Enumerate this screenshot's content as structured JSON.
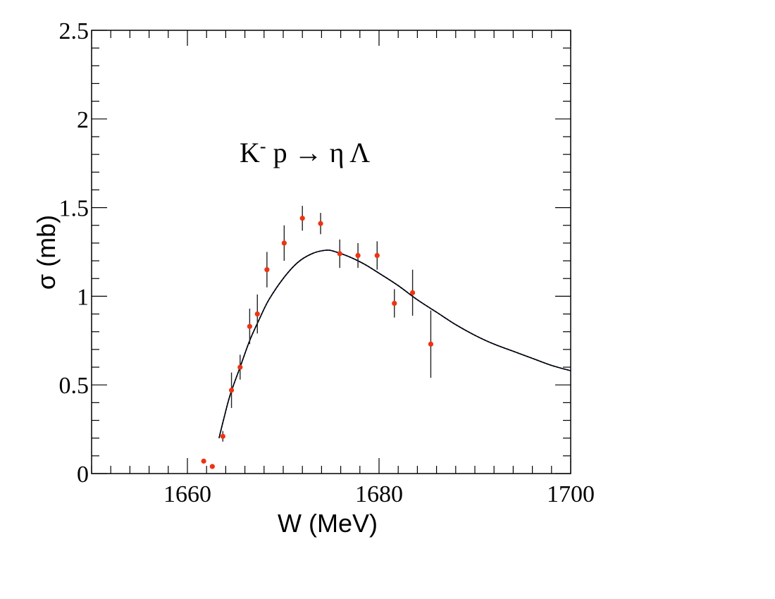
{
  "chart_data": {
    "type": "scatter",
    "xlabel": "W (MeV)",
    "ylabel": "σ (mb)",
    "annotation": {
      "main": "K",
      "superscript": "-",
      "rest": " p → η Λ"
    },
    "xlim": [
      1650,
      1700
    ],
    "ylim": [
      0,
      2.5
    ],
    "x_ticks": [
      1660,
      1680,
      1700
    ],
    "y_ticks": [
      0,
      0.5,
      1,
      1.5,
      2,
      2.5
    ],
    "x_tick_labels": [
      "1660",
      "1680",
      "1700"
    ],
    "y_tick_labels": [
      "0",
      "0.5",
      "1",
      "1.5",
      "2",
      "2.5"
    ],
    "x_minor_step": 2,
    "y_minor_step": 0.1,
    "grid": false,
    "series": [
      {
        "kind": "points-with-errors",
        "color": "#ee3311",
        "points": [
          {
            "x": 1661.7,
            "y": 0.07,
            "err": 0.0
          },
          {
            "x": 1662.6,
            "y": 0.04,
            "err": 0.0
          },
          {
            "x": 1663.7,
            "y": 0.21,
            "err": 0.03
          },
          {
            "x": 1664.6,
            "y": 0.47,
            "err": 0.1
          },
          {
            "x": 1665.5,
            "y": 0.6,
            "err": 0.07
          },
          {
            "x": 1666.5,
            "y": 0.83,
            "err": 0.1
          },
          {
            "x": 1667.3,
            "y": 0.9,
            "err": 0.11
          },
          {
            "x": 1668.3,
            "y": 1.15,
            "err": 0.1
          },
          {
            "x": 1670.1,
            "y": 1.3,
            "err": 0.1
          },
          {
            "x": 1672.0,
            "y": 1.44,
            "err": 0.07
          },
          {
            "x": 1673.9,
            "y": 1.41,
            "err": 0.06
          },
          {
            "x": 1675.9,
            "y": 1.24,
            "err": 0.08
          },
          {
            "x": 1677.8,
            "y": 1.23,
            "err": 0.07
          },
          {
            "x": 1679.8,
            "y": 1.23,
            "err": 0.08
          },
          {
            "x": 1681.6,
            "y": 0.96,
            "err": 0.08
          },
          {
            "x": 1683.5,
            "y": 1.02,
            "err": 0.13
          },
          {
            "x": 1685.4,
            "y": 0.73,
            "err": 0.19
          }
        ]
      },
      {
        "kind": "curve",
        "color": "#000000",
        "x": [
          1663.3,
          1663.8,
          1664.5,
          1665.5,
          1666.5,
          1667.5,
          1668.5,
          1670,
          1671.5,
          1673,
          1674.5,
          1675.5,
          1677,
          1678.5,
          1680,
          1682,
          1684,
          1686,
          1688,
          1690,
          1692,
          1694,
          1696,
          1698,
          1700
        ],
        "y": [
          0.2,
          0.31,
          0.45,
          0.6,
          0.75,
          0.87,
          0.98,
          1.1,
          1.19,
          1.24,
          1.26,
          1.25,
          1.22,
          1.18,
          1.13,
          1.06,
          0.98,
          0.91,
          0.84,
          0.78,
          0.73,
          0.69,
          0.65,
          0.61,
          0.58
        ]
      }
    ]
  }
}
